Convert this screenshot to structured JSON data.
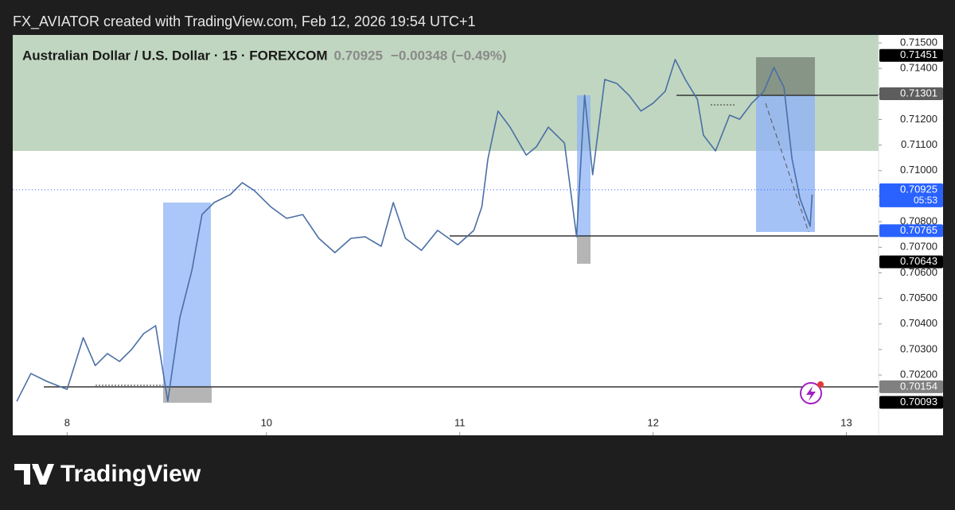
{
  "header": {
    "credit": "FX_AVIATOR created with TradingView.com, Feb 12, 2026 19:54 UTC+1"
  },
  "chart_data": {
    "type": "line",
    "title": "Australian Dollar / U.S. Dollar · 15 · FOREXCOM",
    "last_price": "0.70925",
    "change": "−0.00348 (−0.49%)",
    "countdown": "05:53",
    "color": "#4a6fa5",
    "x": [
      2,
      9,
      17,
      27,
      35,
      41,
      47,
      53,
      59,
      65,
      71,
      77,
      83,
      89,
      94,
      100,
      108,
      114,
      120,
      128,
      136,
      144,
      152,
      160,
      168,
      175,
      183,
      189,
      195,
      203,
      211,
      221,
      229,
      233,
      236,
      241,
      247,
      255,
      260,
      266,
      274,
      280,
      284,
      288,
      294,
      300,
      306,
      312,
      318,
      324,
      329,
      334,
      340,
      343,
      349,
      356,
      361,
      367,
      373,
      378,
      383,
      387,
      391,
      396,
      397
    ],
    "values": [
      0.70097,
      0.70206,
      0.70175,
      0.70144,
      0.70346,
      0.70237,
      0.70284,
      0.70253,
      0.703,
      0.70362,
      0.70393,
      0.70097,
      0.70424,
      0.70611,
      0.70828,
      0.70875,
      0.70906,
      0.70953,
      0.70922,
      0.70859,
      0.70813,
      0.70828,
      0.70735,
      0.70679,
      0.70735,
      0.70741,
      0.70704,
      0.70875,
      0.70735,
      0.70688,
      0.70766,
      0.7071,
      0.70766,
      0.70859,
      0.71046,
      0.71233,
      0.7117,
      0.71061,
      0.71093,
      0.7117,
      0.71108,
      0.70741,
      0.71295,
      0.70984,
      0.71357,
      0.71341,
      0.71295,
      0.71233,
      0.71264,
      0.7131,
      0.71435,
      0.71357,
      0.71279,
      0.71139,
      0.71077,
      0.71217,
      0.71201,
      0.71264,
      0.7131,
      0.71404,
      0.71326,
      0.71046,
      0.7089,
      0.70782,
      0.70906
    ],
    "xlim": [
      0,
      430
    ],
    "xticks": [
      {
        "value": 27,
        "label": "8"
      },
      {
        "value": 126,
        "label": "10"
      },
      {
        "value": 222,
        "label": "11"
      },
      {
        "value": 318,
        "label": "12"
      },
      {
        "value": 414,
        "label": "13"
      }
    ],
    "ylim": [
      0.69964,
      0.71531
    ],
    "yticks": [
      {
        "value": 0.715,
        "label": "0.71500"
      },
      {
        "value": 0.714,
        "label": "0.71400"
      },
      {
        "value": 0.713,
        "label": "0.71300"
      },
      {
        "value": 0.712,
        "label": "0.71200"
      },
      {
        "value": 0.711,
        "label": "0.71100"
      },
      {
        "value": 0.71,
        "label": "0.71000"
      },
      {
        "value": 0.709,
        "label": "0.70900"
      },
      {
        "value": 0.708,
        "label": "0.70800"
      },
      {
        "value": 0.707,
        "label": "0.70700"
      },
      {
        "value": 0.706,
        "label": "0.70600"
      },
      {
        "value": 0.705,
        "label": "0.70500"
      },
      {
        "value": 0.704,
        "label": "0.70400"
      },
      {
        "value": 0.703,
        "label": "0.70300"
      },
      {
        "value": 0.702,
        "label": "0.70200"
      }
    ],
    "price_markers": [
      {
        "value": 0.71451,
        "color": "#000000"
      },
      {
        "value": 0.71301,
        "color": "#5d5d5d"
      },
      {
        "value": 0.70925,
        "color": "#2962ff"
      },
      {
        "value": 0.70765,
        "color": "#2962ff"
      },
      {
        "value": 0.70643,
        "color": "#000000"
      },
      {
        "value": 0.70154,
        "color": "#808080"
      },
      {
        "value": 0.70093,
        "color": "#000000"
      }
    ]
  },
  "footer": {
    "logo_text": "TradingView"
  }
}
